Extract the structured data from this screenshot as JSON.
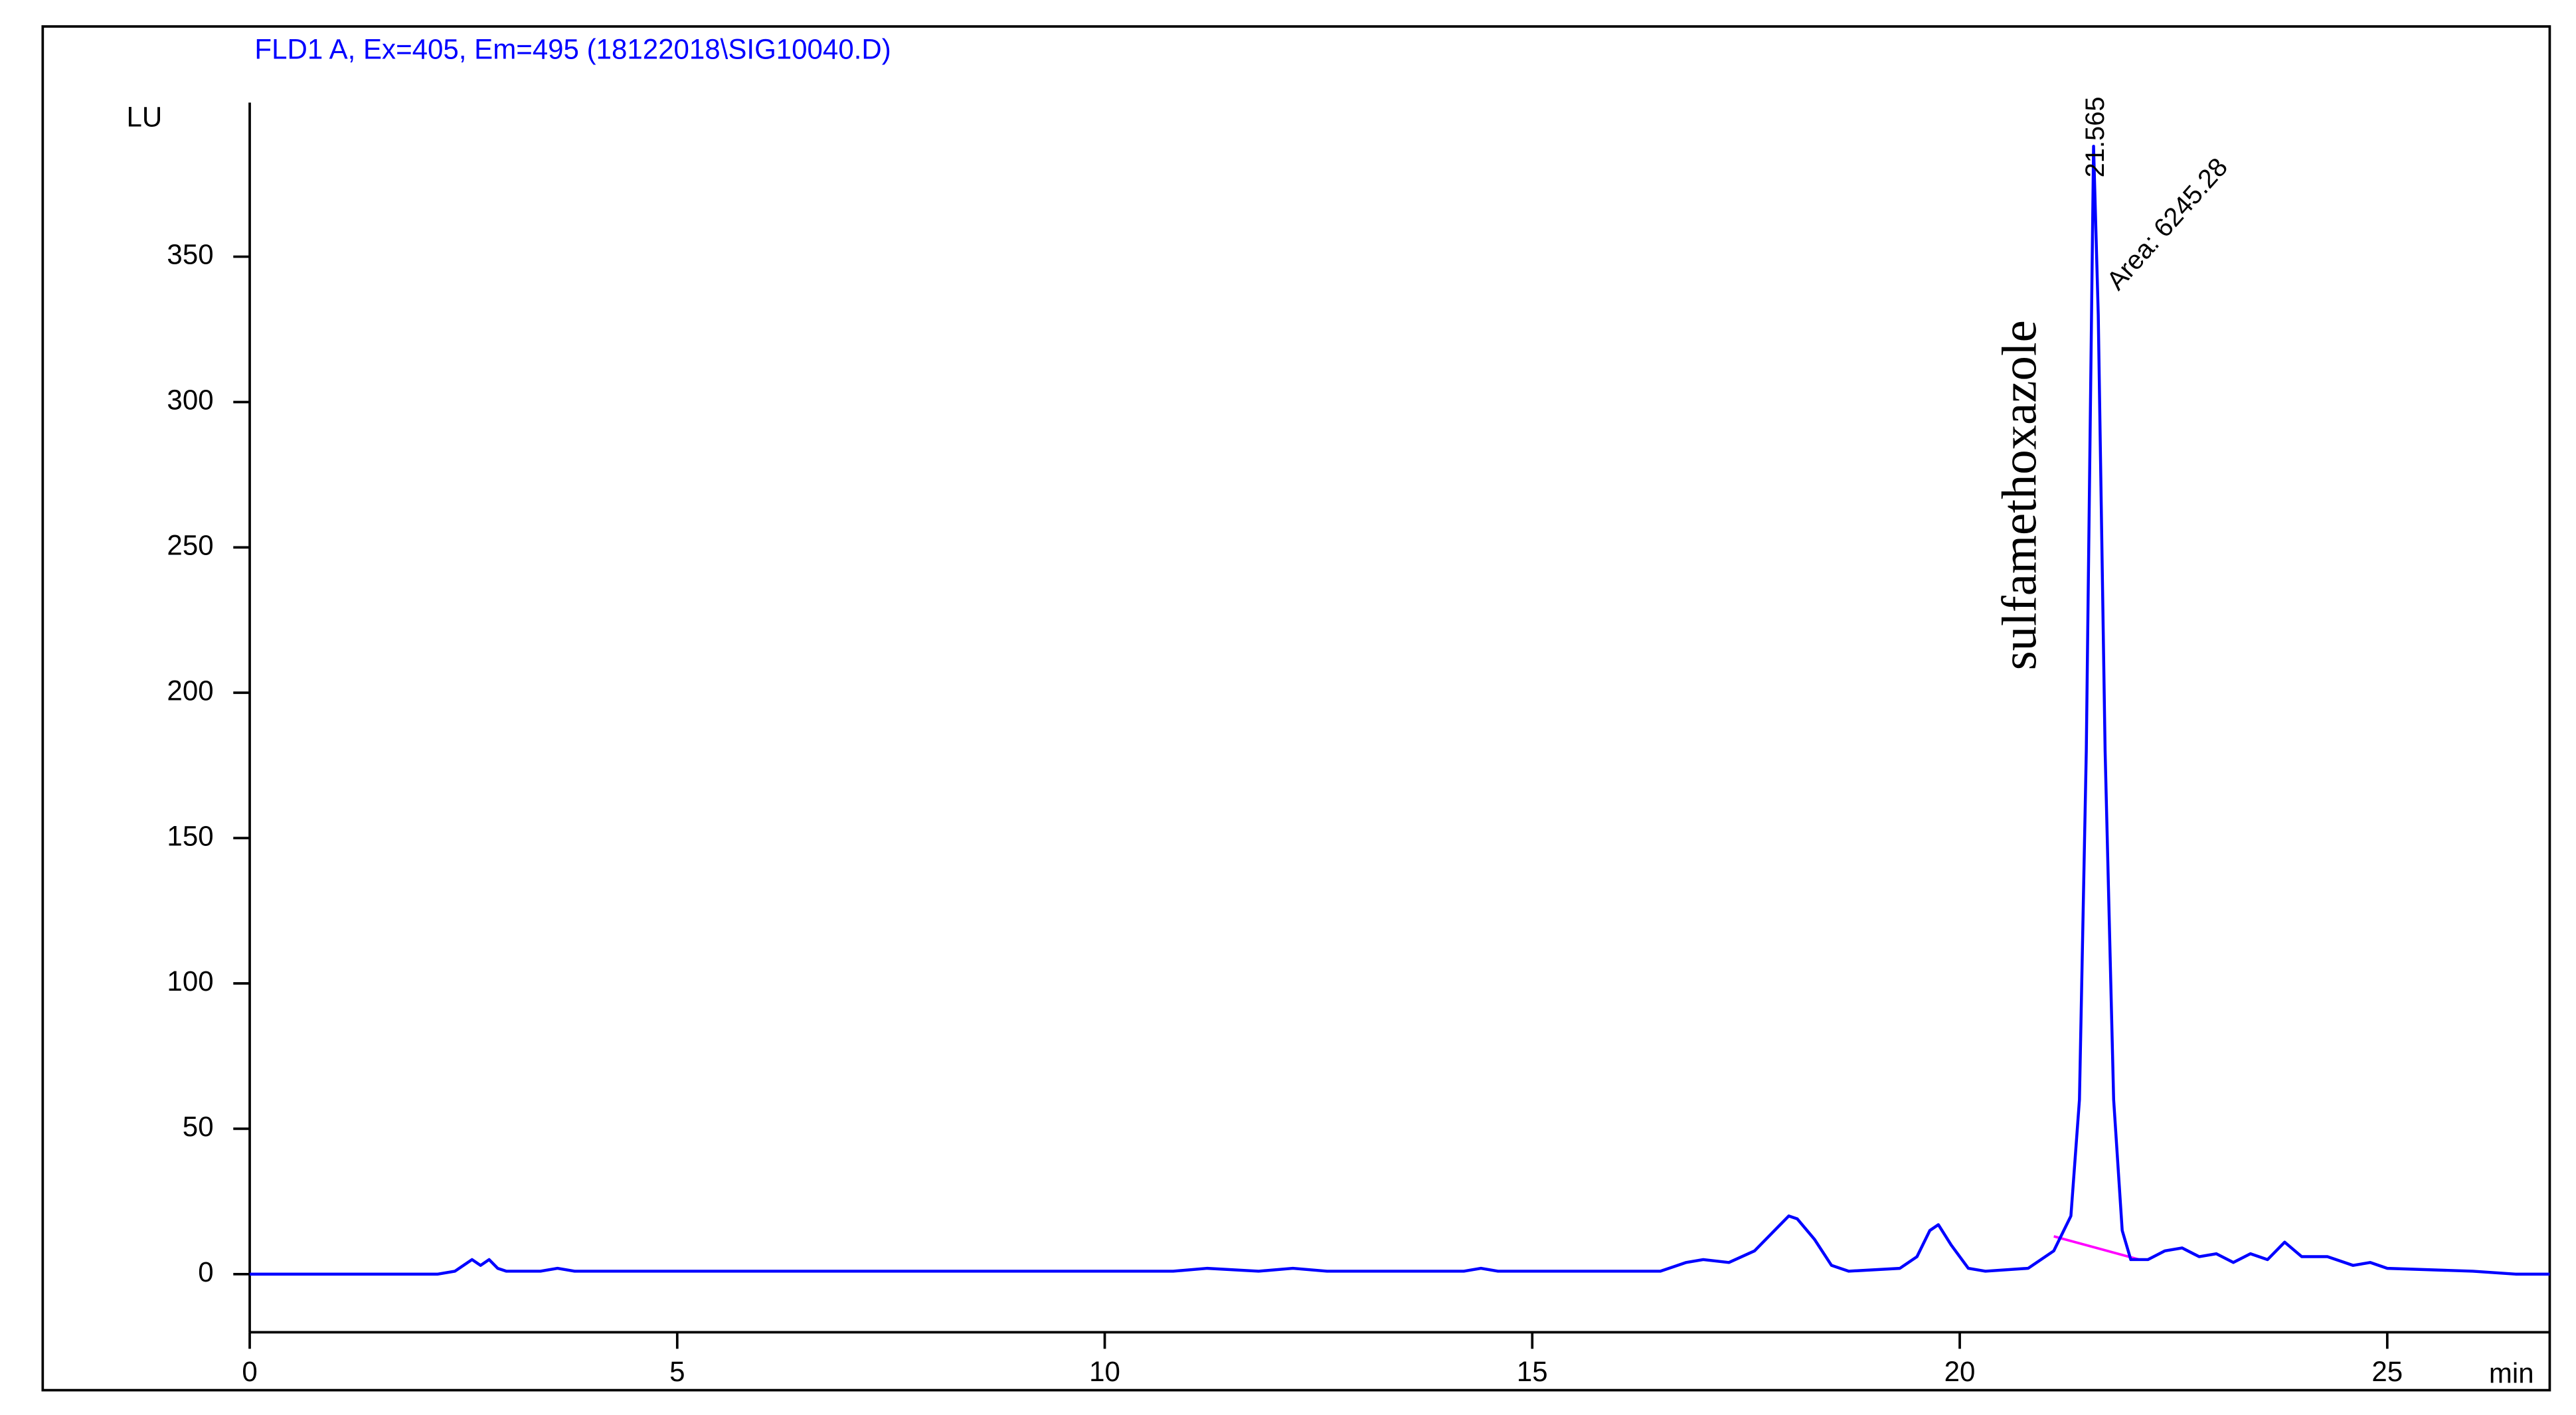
{
  "chart_data": {
    "type": "line",
    "title": "FLD1 A, Ex=405, Em=495 (18122018\\SIG10040.D)",
    "ylabel": "LU",
    "xlabel": "min",
    "color": "#0000ff",
    "x": [
      0,
      2.2,
      2.4,
      2.6,
      2.7,
      2.8,
      2.9,
      3.0,
      3.4,
      3.6,
      3.8,
      10.8,
      11.2,
      11.8,
      12.2,
      12.6,
      14.2,
      14.4,
      14.6,
      16.5,
      16.8,
      17.0,
      17.3,
      17.6,
      17.8,
      18.0,
      18.1,
      18.3,
      18.5,
      18.7,
      19.3,
      19.5,
      19.65,
      19.75,
      19.9,
      20.1,
      20.3,
      20.8,
      21.1,
      21.3,
      21.4,
      21.48,
      21.565,
      21.62,
      21.7,
      21.8,
      21.9,
      22.0,
      22.2,
      22.4,
      22.6,
      22.8,
      23.0,
      23.2,
      23.4,
      23.6,
      23.8,
      24.0,
      24.3,
      24.6,
      24.8,
      25.0,
      26.0,
      26.5,
      26.9
    ],
    "values": [
      0,
      0,
      1,
      5,
      3,
      5,
      2,
      1,
      1,
      2,
      1,
      1,
      2,
      1,
      2,
      1,
      1,
      2,
      1,
      1,
      4,
      5,
      4,
      8,
      14,
      20,
      19,
      12,
      3,
      1,
      2,
      6,
      15,
      17,
      10,
      2,
      1,
      2,
      8,
      20,
      60,
      180,
      388,
      330,
      180,
      60,
      15,
      5,
      5,
      8,
      9,
      6,
      7,
      4,
      7,
      5,
      11,
      6,
      6,
      3,
      4,
      2,
      1,
      0,
      0
    ],
    "baseline": {
      "x": [
        21.1,
        22.1
      ],
      "values": [
        13,
        5
      ],
      "color": "#ff00ff"
    },
    "annotations": {
      "peak_time": "21.565",
      "area": "Area: 6245.28",
      "compound": "sulfamethoxazole"
    },
    "xlim": [
      0,
      26.9
    ],
    "ylim": [
      -20,
      403
    ],
    "xticks": [
      0,
      5,
      10,
      15,
      20,
      25
    ],
    "yticks": [
      0,
      50,
      100,
      150,
      200,
      250,
      300,
      350
    ]
  }
}
